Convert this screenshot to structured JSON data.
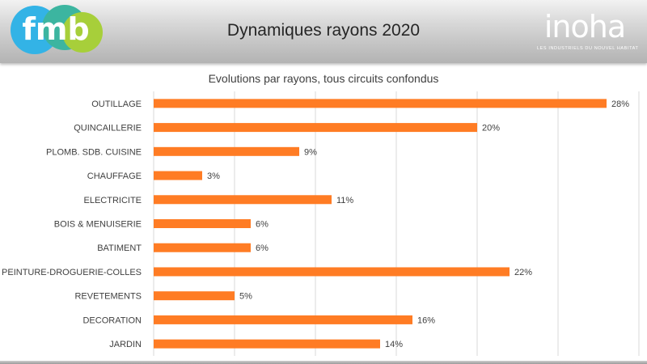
{
  "header": {
    "title": "Dynamiques rayons 2020",
    "logo_left": "fmb",
    "logo_right": "inoha",
    "logo_right_tagline": "LES INDUSTRIELS DU NOUVEL HABITAT"
  },
  "colors": {
    "bar": "#ff7c24",
    "grid": "#d9d9d9",
    "text": "#404040"
  },
  "chart_data": {
    "type": "bar",
    "orientation": "horizontal",
    "title": "Evolutions par rayons, tous circuits confondus",
    "categories": [
      "OUTILLAGE",
      "QUINCAILLERIE",
      "PLOMB. SDB. CUISINE",
      "CHAUFFAGE",
      "ELECTRICITE",
      "BOIS & MENUISERIE",
      "BATIMENT",
      "PEINTURE-DROGUERIE-COLLES",
      "REVETEMENTS",
      "DECORATION",
      "JARDIN"
    ],
    "values": [
      28,
      20,
      9,
      3,
      11,
      6,
      6,
      22,
      5,
      16,
      14
    ],
    "value_labels": [
      "28%",
      "20%",
      "9%",
      "3%",
      "11%",
      "6%",
      "6%",
      "22%",
      "5%",
      "16%",
      "14%"
    ],
    "xlim": [
      0,
      30
    ],
    "grid": true,
    "legend": "none"
  }
}
